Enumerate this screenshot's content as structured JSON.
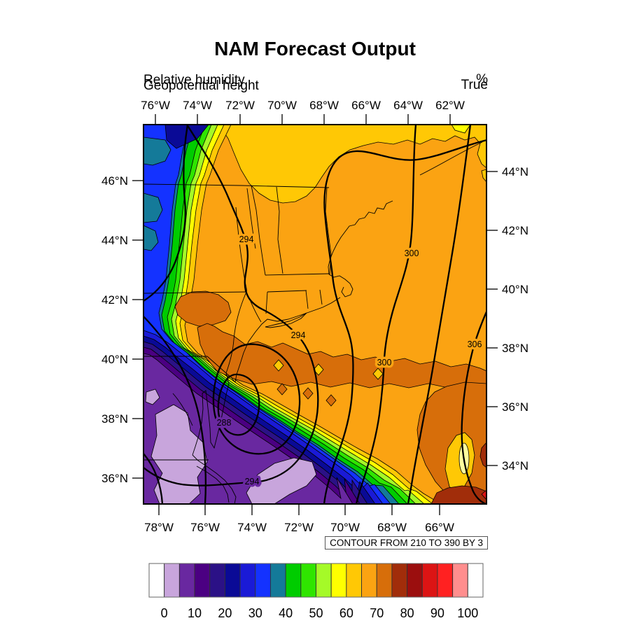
{
  "title": "NAM Forecast Output",
  "subtitles": {
    "left_top": "Relative humidity",
    "left_bottom": "Geopotential height",
    "right_top": "%",
    "right_bottom": "True"
  },
  "axes": {
    "top": [
      "76°W",
      "74°W",
      "72°W",
      "70°W",
      "68°W",
      "66°W",
      "64°W",
      "62°W"
    ],
    "bottom": [
      "78°W",
      "76°W",
      "74°W",
      "72°W",
      "70°W",
      "68°W",
      "66°W"
    ],
    "left": [
      "46°N",
      "44°N",
      "42°N",
      "40°N",
      "38°N",
      "36°N"
    ],
    "right": [
      "44°N",
      "42°N",
      "40°N",
      "38°N",
      "36°N",
      "34°N"
    ]
  },
  "contour_info": "CONTOUR FROM 210 TO 390 BY 3",
  "contour_line_labels": [
    "294",
    "294",
    "300",
    "300",
    "306",
    "288",
    "294"
  ],
  "colorbar": {
    "colors": [
      "white",
      "lavender",
      "purple",
      "indigo",
      "dark_navy",
      "navy",
      "medium_blue",
      "blue",
      "teal",
      "green",
      "bright_green",
      "chartreuse",
      "yellow",
      "gold",
      "orange",
      "chocolate",
      "brown",
      "dark_red",
      "red",
      "bright_red",
      "salmon",
      "white"
    ],
    "labels": [
      "0",
      "10",
      "20",
      "30",
      "40",
      "50",
      "60",
      "70",
      "80",
      "90",
      "100"
    ]
  },
  "palette": {
    "white": "#FFFFFF",
    "lavender": "#C8A5DC",
    "purple": "#6928A0",
    "indigo": "#4B0082",
    "dark_navy": "#2B1186",
    "navy": "#0A0A96",
    "medium_blue": "#1A1AD6",
    "blue": "#1432FF",
    "teal": "#147A99",
    "green": "#00CC00",
    "bright_green": "#2FE500",
    "chartreuse": "#A5FA28",
    "yellow": "#FFFF00",
    "gold": "#FFC805",
    "orange": "#FBA312",
    "chocolate": "#D76E0A",
    "brown": "#A12D0A",
    "dark_red": "#9B0E0E",
    "red": "#DC1414",
    "bright_red": "#FF2121",
    "salmon": "#FF8E8E",
    "pale_yellow": "#FFFF9E"
  },
  "chart_data": {
    "type": "heatmap",
    "title": "NAM Forecast Output",
    "fill_field": {
      "name": "Relative humidity",
      "units": "%",
      "range": [
        0,
        100
      ],
      "level_step": 5,
      "colorbar_labels": [
        0,
        10,
        20,
        30,
        40,
        50,
        60,
        70,
        80,
        90,
        100
      ]
    },
    "line_field": {
      "name": "Geopotential height",
      "contour_from": 210,
      "contour_to": 390,
      "contour_by": 3,
      "labeled_contours_visible": [
        288,
        294,
        300,
        306
      ]
    },
    "projection_note": "True",
    "x_ticks_top": [
      "76°W",
      "74°W",
      "72°W",
      "70°W",
      "68°W",
      "66°W",
      "64°W",
      "62°W"
    ],
    "x_ticks_bottom": [
      "78°W",
      "76°W",
      "74°W",
      "72°W",
      "70°W",
      "68°W",
      "66°W"
    ],
    "y_ticks_left": [
      "46°N",
      "44°N",
      "42°N",
      "40°N",
      "38°N",
      "36°N"
    ],
    "y_ticks_right": [
      "44°N",
      "42°N",
      "40°N",
      "38°N",
      "36°N",
      "34°N"
    ],
    "legend_position": "bottom",
    "grid": false
  }
}
